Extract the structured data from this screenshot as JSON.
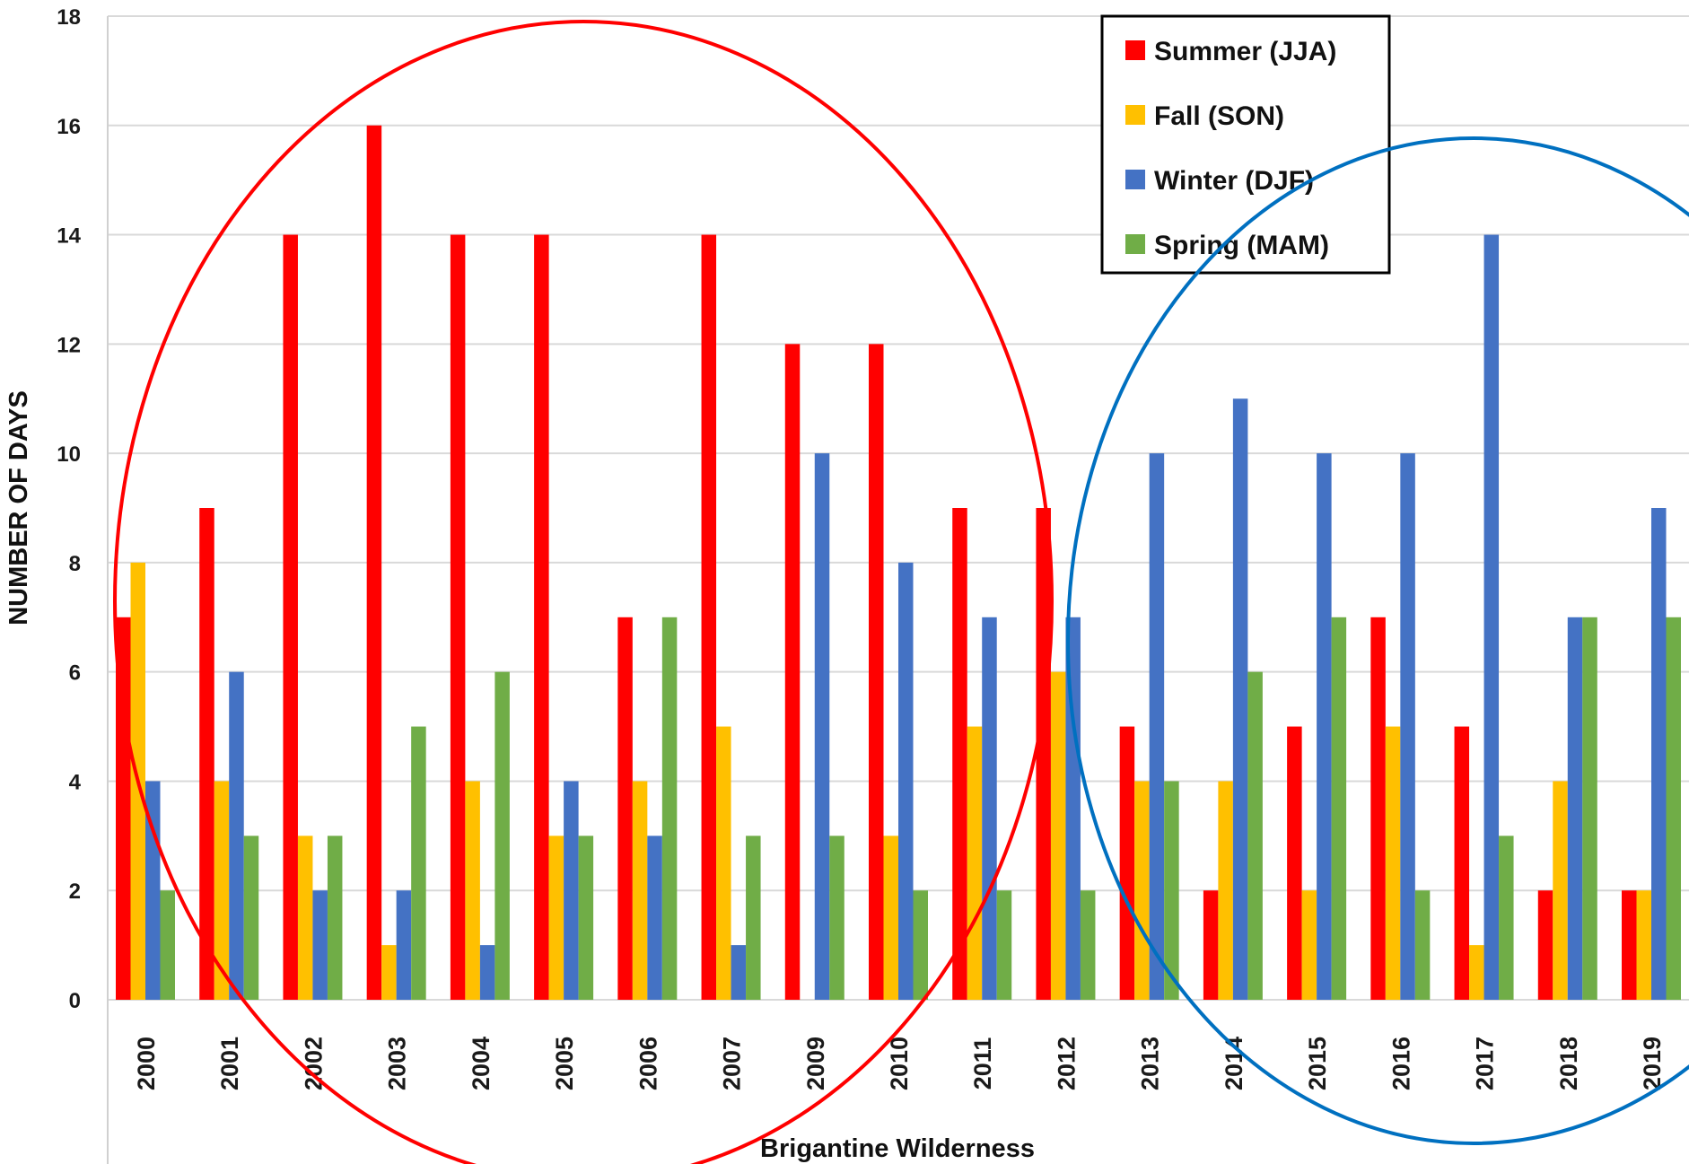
{
  "chart_data": {
    "type": "bar",
    "title": "",
    "xlabel": "Brigantine Wilderness",
    "ylabel": "NUMBER OF DAYS",
    "ylim": [
      0,
      18
    ],
    "yticks": [
      0,
      2,
      4,
      6,
      8,
      10,
      12,
      14,
      16,
      18
    ],
    "grid": true,
    "legend_position": "top-right",
    "categories": [
      "2000",
      "2001",
      "2002",
      "2003",
      "2004",
      "2005",
      "2006",
      "2007",
      "2009",
      "2010",
      "2011",
      "2012",
      "2013",
      "2014",
      "2015",
      "2016",
      "2017",
      "2018",
      "2019"
    ],
    "series": [
      {
        "name": "Summer (JJA)",
        "color": "#ff0000",
        "values": [
          7,
          9,
          14,
          16,
          14,
          14,
          7,
          14,
          12,
          12,
          9,
          9,
          5,
          2,
          5,
          7,
          5,
          2,
          2
        ]
      },
      {
        "name": "Fall (SON)",
        "color": "#ffc000",
        "values": [
          8,
          4,
          3,
          1,
          4,
          3,
          4,
          5,
          0,
          3,
          5,
          6,
          4,
          4,
          2,
          5,
          1,
          4,
          2
        ]
      },
      {
        "name": "Winter (DJF)",
        "color": "#4472c4",
        "values": [
          4,
          6,
          2,
          2,
          1,
          4,
          3,
          1,
          10,
          8,
          7,
          7,
          10,
          11,
          10,
          10,
          14,
          7,
          9
        ]
      },
      {
        "name": "Spring (MAM)",
        "color": "#70ad47",
        "values": [
          2,
          3,
          3,
          5,
          6,
          3,
          7,
          3,
          3,
          2,
          2,
          2,
          4,
          6,
          7,
          2,
          3,
          7,
          7
        ]
      }
    ],
    "annotations": [
      {
        "shape": "ellipse",
        "color": "#ff0000",
        "encloses": "2000–2012"
      },
      {
        "shape": "ellipse",
        "color": "#0070c0",
        "encloses": "2013–2019"
      }
    ]
  }
}
